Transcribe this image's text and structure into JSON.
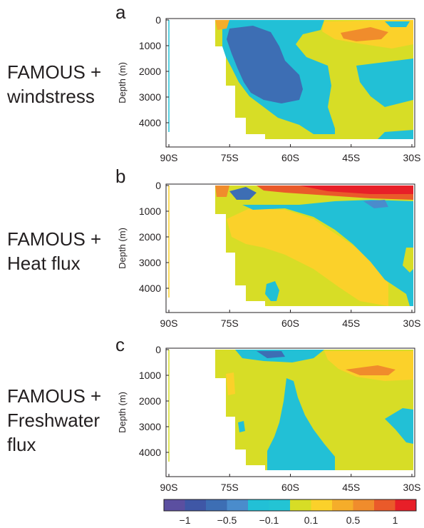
{
  "panels": [
    {
      "letter": "a",
      "label_lines": [
        "FAMOUS +",
        "windstress"
      ]
    },
    {
      "letter": "b",
      "label_lines": [
        "FAMOUS +",
        "Heat flux"
      ]
    },
    {
      "letter": "c",
      "label_lines": [
        "FAMOUS +",
        "Freshwater",
        "flux"
      ]
    }
  ],
  "chart_data": [
    {
      "type": "heatmap",
      "panel": "a",
      "ylabel": "Depth (m)",
      "x_ticks": [
        "90S",
        "75S",
        "60S",
        "45S",
        "30S"
      ],
      "y_ticks": [
        "0",
        "1000",
        "2000",
        "3000",
        "4000"
      ],
      "xlim": [
        -90,
        -30
      ],
      "ylim": [
        4800,
        0
      ],
      "values_description_note": null
    },
    {
      "type": "heatmap",
      "panel": "b",
      "ylabel": "Depth (m)",
      "x_ticks": [
        "90S",
        "75S",
        "60S",
        "45S",
        "30S"
      ],
      "y_ticks": [
        "0",
        "1000",
        "2000",
        "3000",
        "4000"
      ],
      "xlim": [
        -90,
        -30
      ],
      "ylim": [
        4800,
        0
      ]
    },
    {
      "type": "heatmap",
      "panel": "c",
      "ylabel": "Depth (m)",
      "x_ticks": [
        "90S",
        "75S",
        "60S",
        "45S",
        "30S"
      ],
      "y_ticks": [
        "0",
        "1000",
        "2000",
        "3000",
        "4000"
      ],
      "xlim": [
        -90,
        -30
      ],
      "ylim": [
        4800,
        0
      ]
    }
  ],
  "colorbar": {
    "tick_labels": [
      "−1",
      "−0.5",
      "−0.1",
      "0.1",
      "0.5",
      "1"
    ],
    "tick_values": [
      -1,
      -0.5,
      -0.1,
      0.1,
      0.5,
      1
    ],
    "levels": [
      -1.4,
      -1,
      -0.75,
      -0.5,
      -0.3,
      -0.1,
      0,
      0.1,
      0.3,
      0.5,
      0.75,
      1,
      1.4
    ],
    "colors": [
      "#5b4fa0",
      "#3f57a6",
      "#3d6eb4",
      "#4a8ccc",
      "#22c0d6",
      "#23c4d4",
      "#d7dd26",
      "#fbd12a",
      "#f5ad2a",
      "#f08c2c",
      "#ea5a2a",
      "#e81f28"
    ]
  },
  "palette": {
    "land": "#ffffff",
    "neg_strong": "#3d6eb4",
    "neg_mid": "#4a8ccc",
    "cyan": "#22c0d6",
    "yellow_green": "#d7dd26",
    "yellow": "#fbd12a",
    "orange": "#f5ad2a",
    "dark_orange": "#f08c2c",
    "red": "#e81f28"
  }
}
